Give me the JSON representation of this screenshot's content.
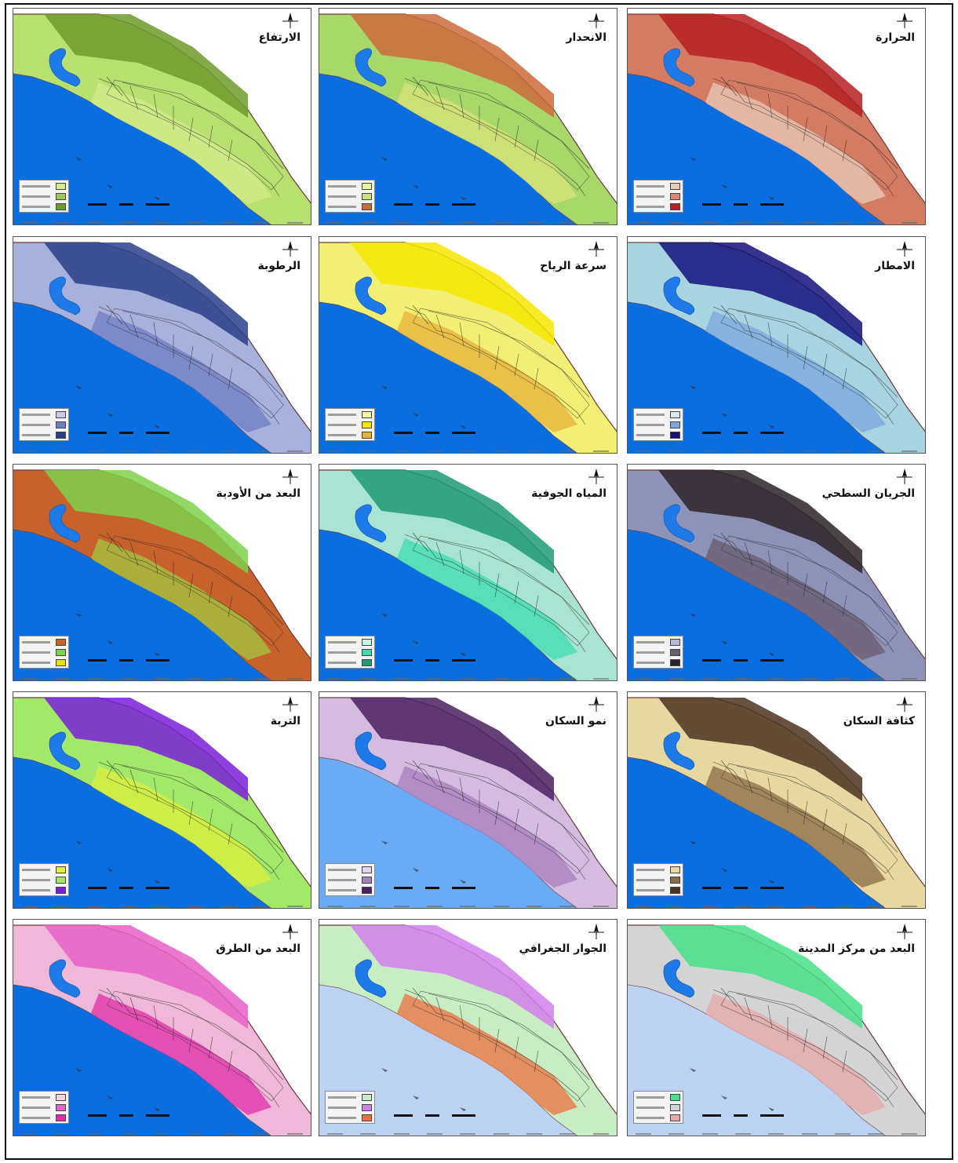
{
  "map": {
    "panels": [
      {
        "title": "الحرارة",
        "sea": "#0b6ee0",
        "base": "#d37b63",
        "accent": "#b52020",
        "accent2": "#e8cbb8",
        "legend": [
          "#e8cbb8",
          "#d98a70",
          "#b52020"
        ]
      },
      {
        "title": "الانحدار",
        "sea": "#0b6ee0",
        "base": "#a8d86a",
        "accent": "#cc6a3a",
        "accent2": "#d9e37a",
        "legend": [
          "#eef39a",
          "#c8e07a",
          "#cc6a3a"
        ]
      },
      {
        "title": "الارتفاع",
        "sea": "#0b6ee0",
        "base": "#b8e070",
        "accent": "#6f9a2c",
        "accent2": "#d4ec8c",
        "legend": [
          "#d4ec8c",
          "#9ec850",
          "#6f9a2c"
        ]
      },
      {
        "title": "الامطار",
        "sea": "#0b6ee0",
        "base": "#a8d3e0",
        "accent": "#13127a",
        "accent2": "#7aa8dc",
        "legend": [
          "#d3e9ef",
          "#7aa8dc",
          "#13127a"
        ]
      },
      {
        "title": "سرعة الرياح",
        "sea": "#0b6ee0",
        "base": "#f1ef74",
        "accent": "#f7e600",
        "accent2": "#e7b23a",
        "legend": [
          "#f7f4a0",
          "#f7e600",
          "#e7b23a"
        ]
      },
      {
        "title": "الرطوبة",
        "sea": "#0b6ee0",
        "base": "#a8b0dc",
        "accent": "#2a3f8a",
        "accent2": "#6d7ec4",
        "legend": [
          "#c6cbe9",
          "#6d7ec4",
          "#2a3f8a"
        ]
      },
      {
        "title": "الجريان السطحي",
        "sea": "#0b6ee0",
        "base": "#8d93b8",
        "accent": "#2d2228",
        "accent2": "#6a5a6d",
        "legend": [
          "#b3b7d2",
          "#6a5a6d",
          "#2d2228"
        ]
      },
      {
        "title": "المياه الجوفية",
        "sea": "#0b6ee0",
        "base": "#a9e3d2",
        "accent": "#1f9a74",
        "accent2": "#3ddcb0",
        "legend": [
          "#c9f1e4",
          "#3ddcb0",
          "#1f9a74"
        ]
      },
      {
        "title": "البعد من الأودية",
        "sea": "#0b6ee0",
        "base": "#c8622c",
        "accent": "#7fd14a",
        "accent2": "#a2c840",
        "legend": [
          "#c8622c",
          "#7fd14a",
          "#e8e000"
        ]
      },
      {
        "title": "كثافة السكان",
        "sea": "#0b6ee0",
        "base": "#e6d8a0",
        "accent": "#4a3420",
        "accent2": "#8a6a44",
        "legend": [
          "#e6d8a0",
          "#8a6a44",
          "#4a3420"
        ]
      },
      {
        "title": "نمو السكان",
        "sea": "#6aabf5",
        "base": "#d4bce0",
        "accent": "#4a2060",
        "accent2": "#a87ebc",
        "legend": [
          "#e3d3ec",
          "#a87ebc",
          "#4a2060"
        ]
      },
      {
        "title": "التربة",
        "sea": "#0b6ee0",
        "base": "#a2e86a",
        "accent": "#7a1ed8",
        "accent2": "#dcef3c",
        "legend": [
          "#dcef3c",
          "#a2e86a",
          "#7a1ed8"
        ]
      },
      {
        "title": "البعد من مركز المدينة",
        "sea": "#bcd2f2",
        "base": "#d4d4d4",
        "accent": "#46e08a",
        "accent2": "#e8a8a8",
        "legend": [
          "#46e08a",
          "#d4d4d4",
          "#e8a8a8"
        ]
      },
      {
        "title": "الجوار الجغرافي",
        "sea": "#bcd2f2",
        "base": "#c8ecc4",
        "accent": "#d080ec",
        "accent2": "#ec7040",
        "legend": [
          "#c8ecc4",
          "#d080ec",
          "#ec7040"
        ]
      },
      {
        "title": "البعد من الطرق",
        "sea": "#0b6ee0",
        "base": "#f0b8d8",
        "accent": "#e860c8",
        "accent2": "#e02ca8",
        "legend": [
          "#f6d4e8",
          "#e860c8",
          "#e02ca8"
        ]
      }
    ]
  }
}
